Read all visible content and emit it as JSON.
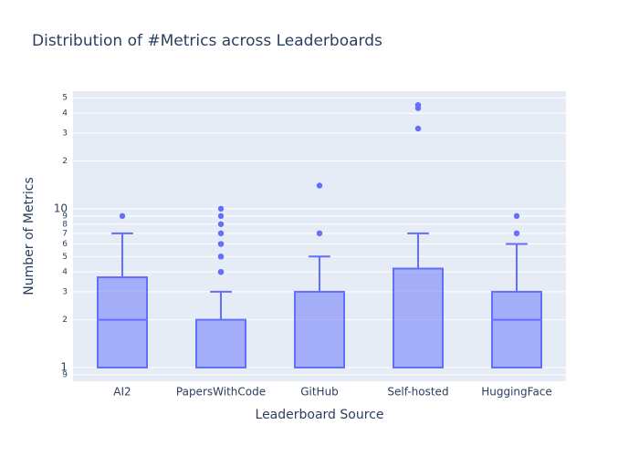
{
  "chart_data": {
    "type": "box",
    "title": "Distribution of #Metrics across Leaderboards",
    "x_label": "Leaderboard Source",
    "y_label": "Number of Metrics",
    "y_scale": "log",
    "grid": true,
    "color": "#636efa",
    "categories": [
      "AI2",
      "PapersWithCode",
      "GitHub",
      "Self-hosted",
      "HuggingFace"
    ],
    "boxes": [
      {
        "min": 1,
        "q1": 1,
        "median": 2,
        "q3": 3.7,
        "max": 7,
        "outliers": [
          9
        ]
      },
      {
        "min": 1,
        "q1": 1,
        "median": 1,
        "q3": 2,
        "max": 3,
        "outliers": [
          4,
          4,
          5,
          5,
          6,
          6,
          7,
          8,
          9,
          10
        ]
      },
      {
        "min": 1,
        "q1": 1,
        "median": 1,
        "q3": 3,
        "max": 5,
        "outliers": [
          7,
          14
        ]
      },
      {
        "min": 1,
        "q1": 1,
        "median": 1,
        "q3": 4.2,
        "max": 7,
        "outliers": [
          32,
          43,
          45
        ]
      },
      {
        "min": 1,
        "q1": 1,
        "median": 2,
        "q3": 3,
        "max": 6,
        "outliers": [
          7,
          9
        ]
      }
    ],
    "ylim": [
      0.82,
      55
    ],
    "yticks": [
      {
        "value": 0.9,
        "label": "9"
      },
      1,
      2,
      3,
      4,
      5,
      6,
      7,
      8,
      9,
      10,
      {
        "value": 20,
        "label": "2"
      },
      {
        "value": 30,
        "label": "3"
      },
      {
        "value": 40,
        "label": "4"
      },
      {
        "value": 50,
        "label": "5"
      }
    ]
  }
}
